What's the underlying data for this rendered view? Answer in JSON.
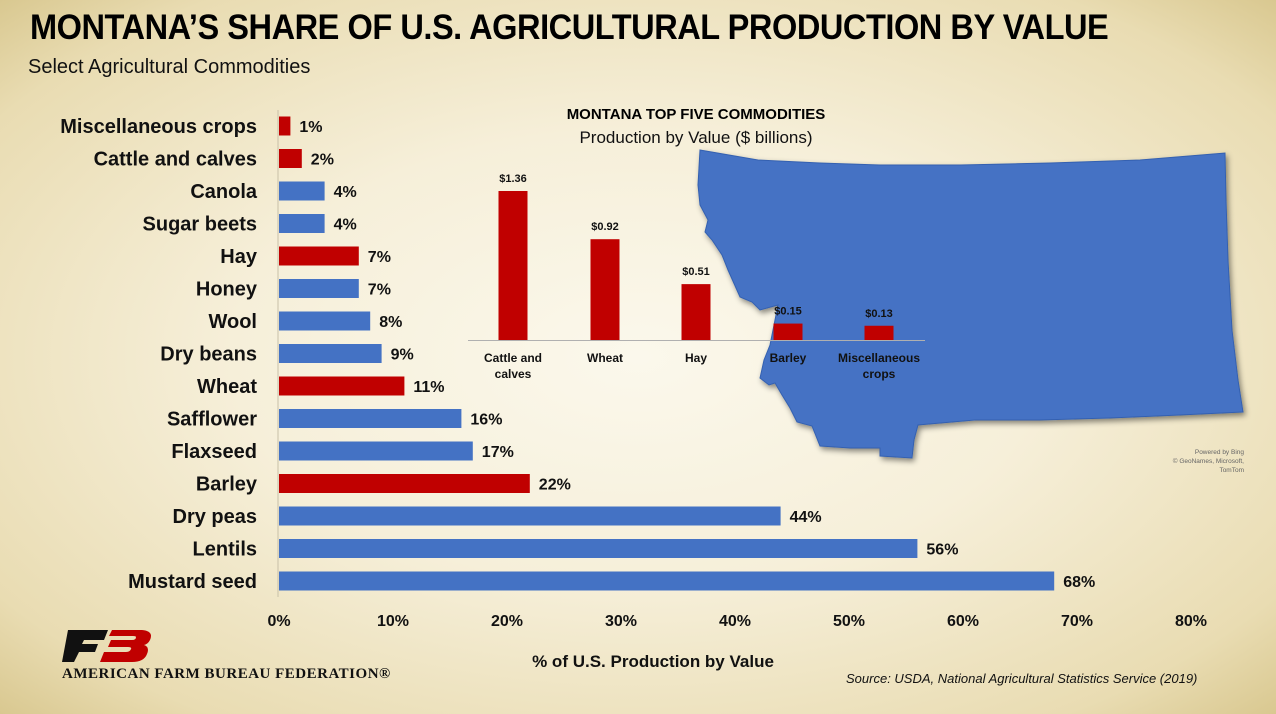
{
  "header": {
    "title": "MONTANA’S SHARE OF U.S. AGRICULTURAL PRODUCTION BY VALUE",
    "subtitle": "Select Agricultural Commodities"
  },
  "chart_data": [
    {
      "type": "bar",
      "orientation": "horizontal",
      "title": "",
      "categories": [
        "Miscellaneous crops",
        "Cattle and calves",
        "Canola",
        "Sugar beets",
        "Hay",
        "Honey",
        "Wool",
        "Dry beans",
        "Wheat",
        "Safflower",
        "Flaxseed",
        "Barley",
        "Dry peas",
        "Lentils",
        "Mustard seed"
      ],
      "values": [
        1,
        2,
        4,
        4,
        7,
        7,
        8,
        9,
        11,
        16,
        17,
        22,
        44,
        56,
        68
      ],
      "value_labels": [
        "1%",
        "2%",
        "4%",
        "4%",
        "7%",
        "7%",
        "8%",
        "9%",
        "11%",
        "16%",
        "17%",
        "22%",
        "44%",
        "56%",
        "68%"
      ],
      "highlight": [
        true,
        true,
        false,
        false,
        true,
        false,
        false,
        false,
        true,
        false,
        false,
        true,
        false,
        false,
        false
      ],
      "xlabel": "% of U.S. Production by Value",
      "ylabel": "",
      "xlim": [
        0,
        80
      ],
      "ticks": [
        "0%",
        "10%",
        "20%",
        "30%",
        "40%",
        "50%",
        "60%",
        "70%",
        "80%"
      ],
      "grid": false,
      "colors": {
        "highlight": "#c00000",
        "default": "#4472c4"
      }
    },
    {
      "type": "bar",
      "title": "MONTANA TOP FIVE COMMODITIES",
      "subtitle": "Production by Value ($ billions)",
      "categories": [
        [
          "Cattle and",
          "calves"
        ],
        [
          "Wheat"
        ],
        [
          "Hay"
        ],
        [
          "Barley"
        ],
        [
          "Miscellaneous",
          "crops"
        ]
      ],
      "values": [
        1.36,
        0.92,
        0.51,
        0.15,
        0.13
      ],
      "value_labels": [
        "$1.36",
        "$0.92",
        "$0.51",
        "$0.15",
        "$0.13"
      ],
      "ylim": [
        0,
        1.36
      ],
      "color": "#c00000"
    }
  ],
  "map": {
    "region": "Montana",
    "fill_color": "#4472c4",
    "attribution_lines": [
      "Powered by Bing",
      "© GeoNames, Microsoft, TomTom"
    ]
  },
  "footer": {
    "logo_text": "AMERICAN FARM BUREAU FEDERATION®",
    "source": "Source: USDA, National Agricultural Statistics Service (2019)"
  }
}
